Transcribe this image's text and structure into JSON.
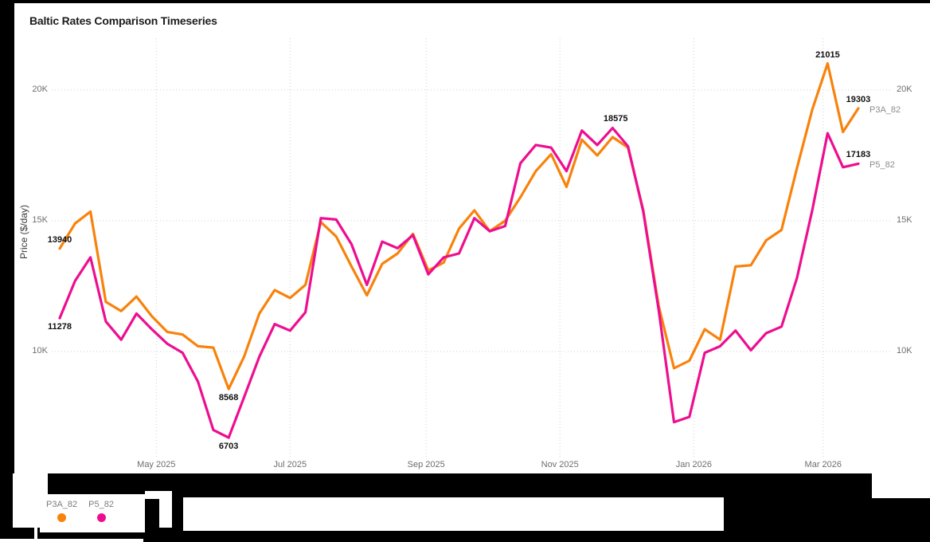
{
  "page": {
    "background": "#000000",
    "panel_background": "#ffffff"
  },
  "chart_data": {
    "type": "line",
    "title": "Baltic Rates Comparison Timeseries",
    "xlabel": "",
    "ylabel": "Price ($/day)",
    "x_unit": "weekly samples, Mar 2025 - Mar 2026",
    "x_tick_labels": [
      "May 2025",
      "Jul 2025",
      "Sep 2025",
      "Nov 2025",
      "Jan 2026",
      "Mar 2026"
    ],
    "x_tick_weeks": [
      6.29,
      15.0,
      23.86,
      32.57,
      41.29,
      49.71
    ],
    "y_tick_labels": [
      "20K",
      "15K",
      "10K"
    ],
    "y_tick_values": [
      20000,
      15000,
      10000
    ],
    "ylim": [
      5900,
      22000
    ],
    "grid": "dotted",
    "legend_position": "bottom-left",
    "series": [
      {
        "name": "P3A_82",
        "color": "#f8820b",
        "values": [
          13940,
          14900,
          15350,
          11900,
          11550,
          12100,
          11350,
          10750,
          10650,
          10200,
          10150,
          8568,
          9800,
          11450,
          12350,
          12050,
          12550,
          14950,
          14400,
          13250,
          12150,
          13350,
          13750,
          14500,
          13100,
          13400,
          14700,
          15400,
          14600,
          15000,
          15900,
          16900,
          17550,
          16300,
          18100,
          17500,
          18200,
          17800,
          15400,
          11750,
          9360,
          9650,
          10850,
          10450,
          13250,
          13300,
          14250,
          14650,
          17000,
          19250,
          21015,
          18400,
          19303
        ]
      },
      {
        "name": "P5_82",
        "color": "#ed0e90",
        "values": [
          11278,
          12700,
          13600,
          11150,
          10450,
          11450,
          10850,
          10300,
          9950,
          8850,
          7000,
          6703,
          8250,
          9800,
          11050,
          10800,
          11500,
          15100,
          15050,
          14100,
          12550,
          14200,
          13950,
          14450,
          12950,
          13600,
          13750,
          15100,
          14600,
          14800,
          17200,
          17900,
          17800,
          16900,
          18450,
          17900,
          18550,
          17850,
          15350,
          11600,
          7300,
          7500,
          9950,
          10200,
          10800,
          10050,
          10700,
          10950,
          12800,
          15400,
          18350,
          17050,
          17183
        ]
      }
    ],
    "annotations": [
      {
        "text": "13940",
        "series": 0,
        "i": 0,
        "value": 13940,
        "placement": "above"
      },
      {
        "text": "11278",
        "series": 1,
        "i": 0,
        "value": 11278,
        "placement": "below"
      },
      {
        "text": "8568",
        "series": 0,
        "i": 11,
        "value": 8568,
        "placement": "below"
      },
      {
        "text": "6703",
        "series": 1,
        "i": 11,
        "value": 6703,
        "placement": "below"
      },
      {
        "text": "18575",
        "series": 1,
        "i": 36.2,
        "value": 18575,
        "placement": "above"
      },
      {
        "text": "21015",
        "series": 0,
        "i": 50,
        "value": 21015,
        "placement": "above"
      },
      {
        "text": "19303",
        "series": 0,
        "i": 52,
        "value": 19303,
        "placement": "above"
      },
      {
        "text": "17183",
        "series": 1,
        "i": 52,
        "value": 17183,
        "placement": "above"
      }
    ],
    "end_labels": [
      {
        "text": "P3A_82",
        "series": 0
      },
      {
        "text": "P5_82",
        "series": 1
      }
    ]
  },
  "legend": {
    "items": [
      {
        "label": "P3A_82",
        "color": "#f8820b"
      },
      {
        "label": "P5_82",
        "color": "#ed0e90"
      }
    ]
  }
}
